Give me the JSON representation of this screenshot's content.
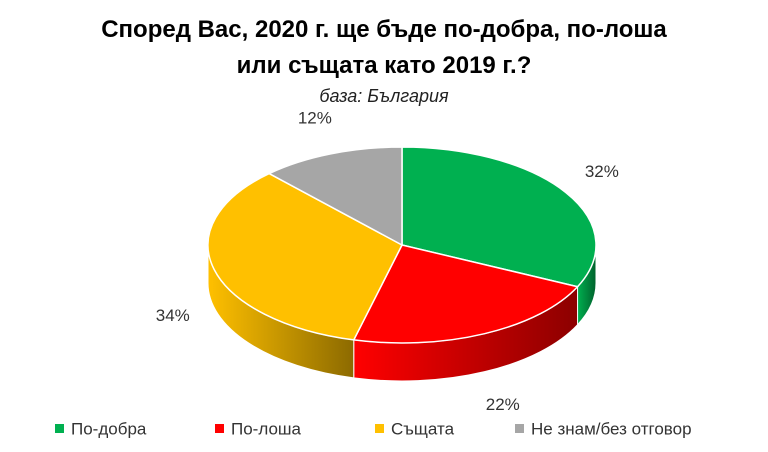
{
  "chart_data": {
    "type": "pie3d",
    "title": "Според Вас, 2020 г. ще бъде по-добра, по-лоша или същата като 2019 г.?",
    "subtitle": "база: България",
    "categories": [
      "По-добра",
      "По-лоша",
      "Същата",
      "Не знам/без отговор"
    ],
    "values": [
      32,
      22,
      34,
      12
    ],
    "value_labels": [
      "32%",
      "22%",
      "34%",
      "12%"
    ],
    "colors": [
      "#00b050",
      "#ff0000",
      "#ffc000",
      "#a6a6a6"
    ],
    "legend": "bottom"
  }
}
